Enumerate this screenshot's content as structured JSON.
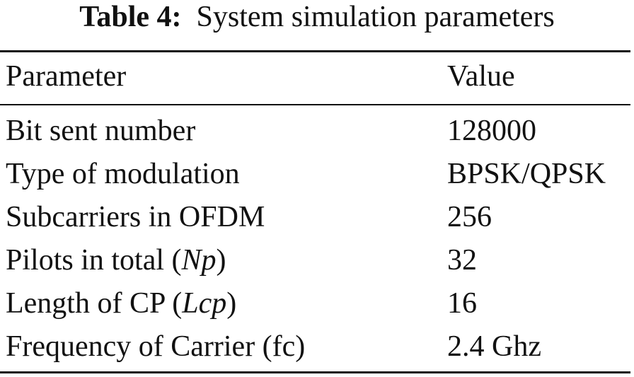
{
  "caption": {
    "label": "Table 4:",
    "title": "System simulation parameters"
  },
  "header": {
    "parameter": "Parameter",
    "value": "Value"
  },
  "rows": [
    {
      "parameter": "Bit sent number",
      "value": "128000"
    },
    {
      "parameter": "Type of modulation",
      "value": "BPSK/QPSK"
    },
    {
      "parameter": "Subcarriers in OFDM",
      "value": "256"
    },
    {
      "parameter_prefix": "Pilots in total (",
      "parameter_symbol": "Np",
      "parameter_suffix": ")",
      "value": "32"
    },
    {
      "parameter_prefix": "Length of CP (",
      "parameter_symbol": "Lcp",
      "parameter_suffix": ")",
      "value": "16"
    },
    {
      "parameter": "Frequency of Carrier (fc)",
      "value": "2.4 Ghz"
    }
  ]
}
